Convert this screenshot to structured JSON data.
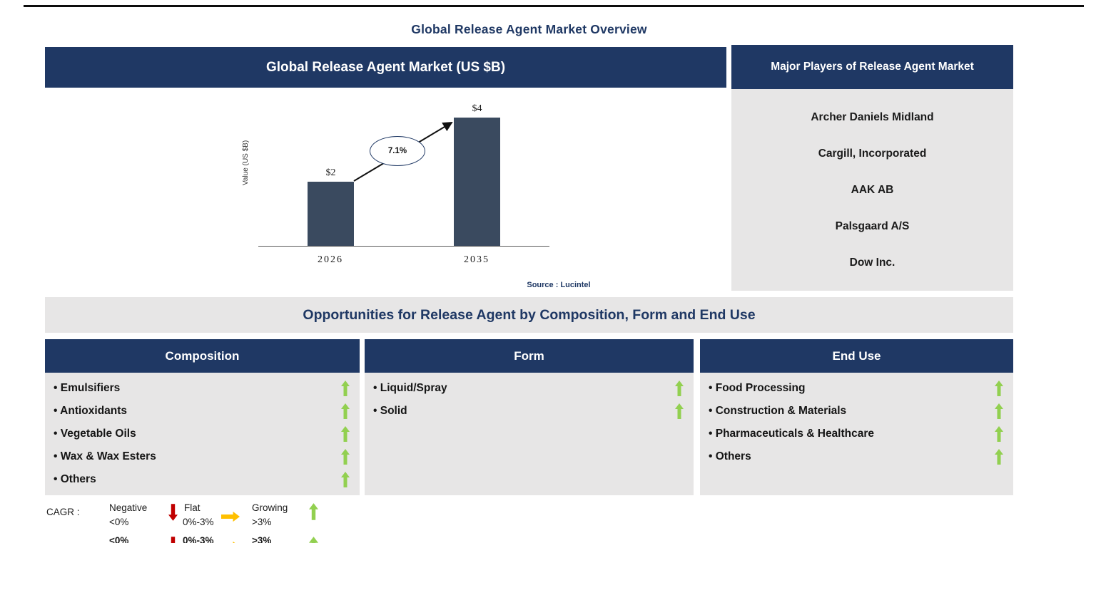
{
  "page": {
    "title": "Global Release Agent Market Overview"
  },
  "chart_panel": {
    "header": "Global Release Agent Market (US $B)",
    "source": "Source : Lucintel"
  },
  "chart_data": {
    "type": "bar",
    "title": "Global Release Agent Market (US $B)",
    "ylabel": "Value (US $B)",
    "categories": [
      "2026",
      "2035"
    ],
    "values": [
      2,
      4
    ],
    "bar_labels": [
      "$2",
      "$4"
    ],
    "cagr_label": "7.1%",
    "ylim": [
      0,
      4.4
    ],
    "grid": false,
    "bar_color": "#3A4A5F"
  },
  "players_panel": {
    "header": "Major Players of Release Agent Market",
    "companies": [
      "Archer Daniels Midland",
      "Cargill, Incorporated",
      "AAK AB",
      "Palsgaard A/S",
      "Dow Inc."
    ]
  },
  "opportunities": {
    "banner": "Opportunities for Release Agent by Composition, Form and End Use",
    "columns": [
      {
        "header": "Composition",
        "items": [
          "Emulsifiers",
          "Antioxidants",
          "Vegetable Oils",
          "Wax & Wax Esters",
          "Others"
        ],
        "trends": [
          "growing",
          "growing",
          "growing",
          "growing",
          "growing"
        ]
      },
      {
        "header": "Form",
        "items": [
          "Liquid/Spray",
          "Solid"
        ],
        "trends": [
          "growing",
          "growing"
        ]
      },
      {
        "header": "End Use",
        "items": [
          "Food Processing",
          "Construction & Materials",
          "Pharmaceuticals & Healthcare",
          "Others"
        ],
        "trends": [
          "growing",
          "growing",
          "growing",
          "growing"
        ]
      }
    ]
  },
  "legend": {
    "label": "CAGR  :",
    "entries": [
      {
        "name": "Negative",
        "range": "<0%",
        "icon": "down-arrow",
        "color": "#C00000"
      },
      {
        "name": "Flat",
        "range": "0%-3%",
        "icon": "right-arrow",
        "color": "#FFC000"
      },
      {
        "name": "Growing",
        "range": ">3%",
        "icon": "up-arrow",
        "color": "#92D050"
      }
    ]
  },
  "colors": {
    "navy_header": "#1F3864",
    "bar_fill": "#3A4A5F",
    "panel_gray": "#E7E6E6",
    "growing_green": "#92D050",
    "negative_red": "#C00000",
    "flat_yellow": "#FFC000"
  }
}
